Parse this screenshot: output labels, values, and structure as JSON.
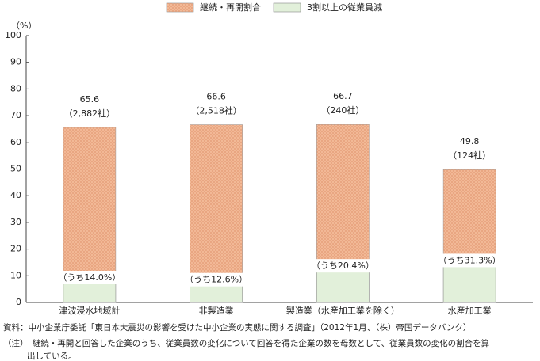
{
  "chart_data": {
    "type": "bar",
    "categories": [
      "津波浸水地域計",
      "非製造業",
      "製造業（水産加工業を除く）",
      "水産加工業"
    ],
    "y_unit": "（%）",
    "ylim": [
      0,
      100
    ],
    "yticks": [
      0,
      10,
      20,
      30,
      40,
      50,
      60,
      70,
      80,
      90,
      100
    ],
    "grid": false,
    "series": [
      {
        "name": "継続・再開割合",
        "color": "#f3bb99",
        "values": [
          65.6,
          66.6,
          66.7,
          49.8
        ],
        "count_labels": [
          "（2,882社）",
          "（2,518社）",
          "（240社）",
          "（124社）"
        ]
      },
      {
        "name": "3割以上の従業員減",
        "color": "#e2f0da",
        "values": [
          9.2,
          8.4,
          13.6,
          15.6
        ],
        "share_labels": [
          "（うち14.0%）",
          "（うち12.6%）",
          "（うち20.4%）",
          "（うち31.3%）"
        ]
      }
    ],
    "notes": [
      "資料：中小企業庁委託「東日本大震災の影響を受けた中小企業の実態に関する調査」（2012年1月、（株）帝国データバンク）",
      "（注）　継続・再開と回答した企業のうち、従業員数の変化について回答を得た企業の数を母数として、従業員数の変化の割合を算",
      "出している。"
    ]
  }
}
